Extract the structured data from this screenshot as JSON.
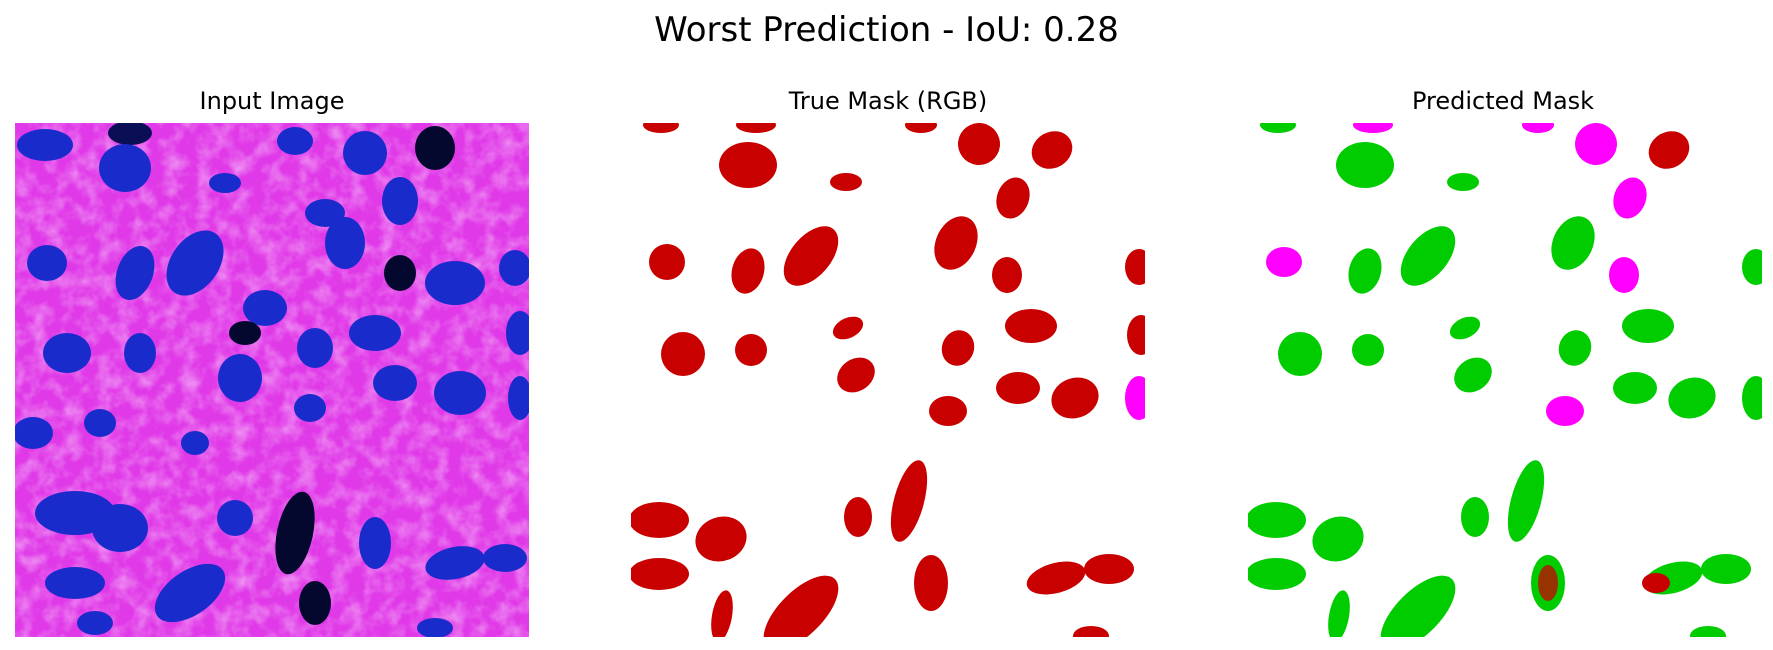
{
  "figure": {
    "title": "Worst Prediction - IoU: 0.28"
  },
  "panels": [
    {
      "title": "Input Image"
    },
    {
      "title": "True Mask (RGB)"
    },
    {
      "title": "Predicted Mask"
    }
  ],
  "colors": {
    "tissue_background": "#e03ae8",
    "tissue_light": "#f2a8f5",
    "nucleus": "#1a2bcc",
    "nucleus_dark": "#05082e",
    "mask_background": "#ffffff",
    "mask_red": "#c80000",
    "mask_magenta": "#ff00ff",
    "mask_green": "#00cc00"
  }
}
